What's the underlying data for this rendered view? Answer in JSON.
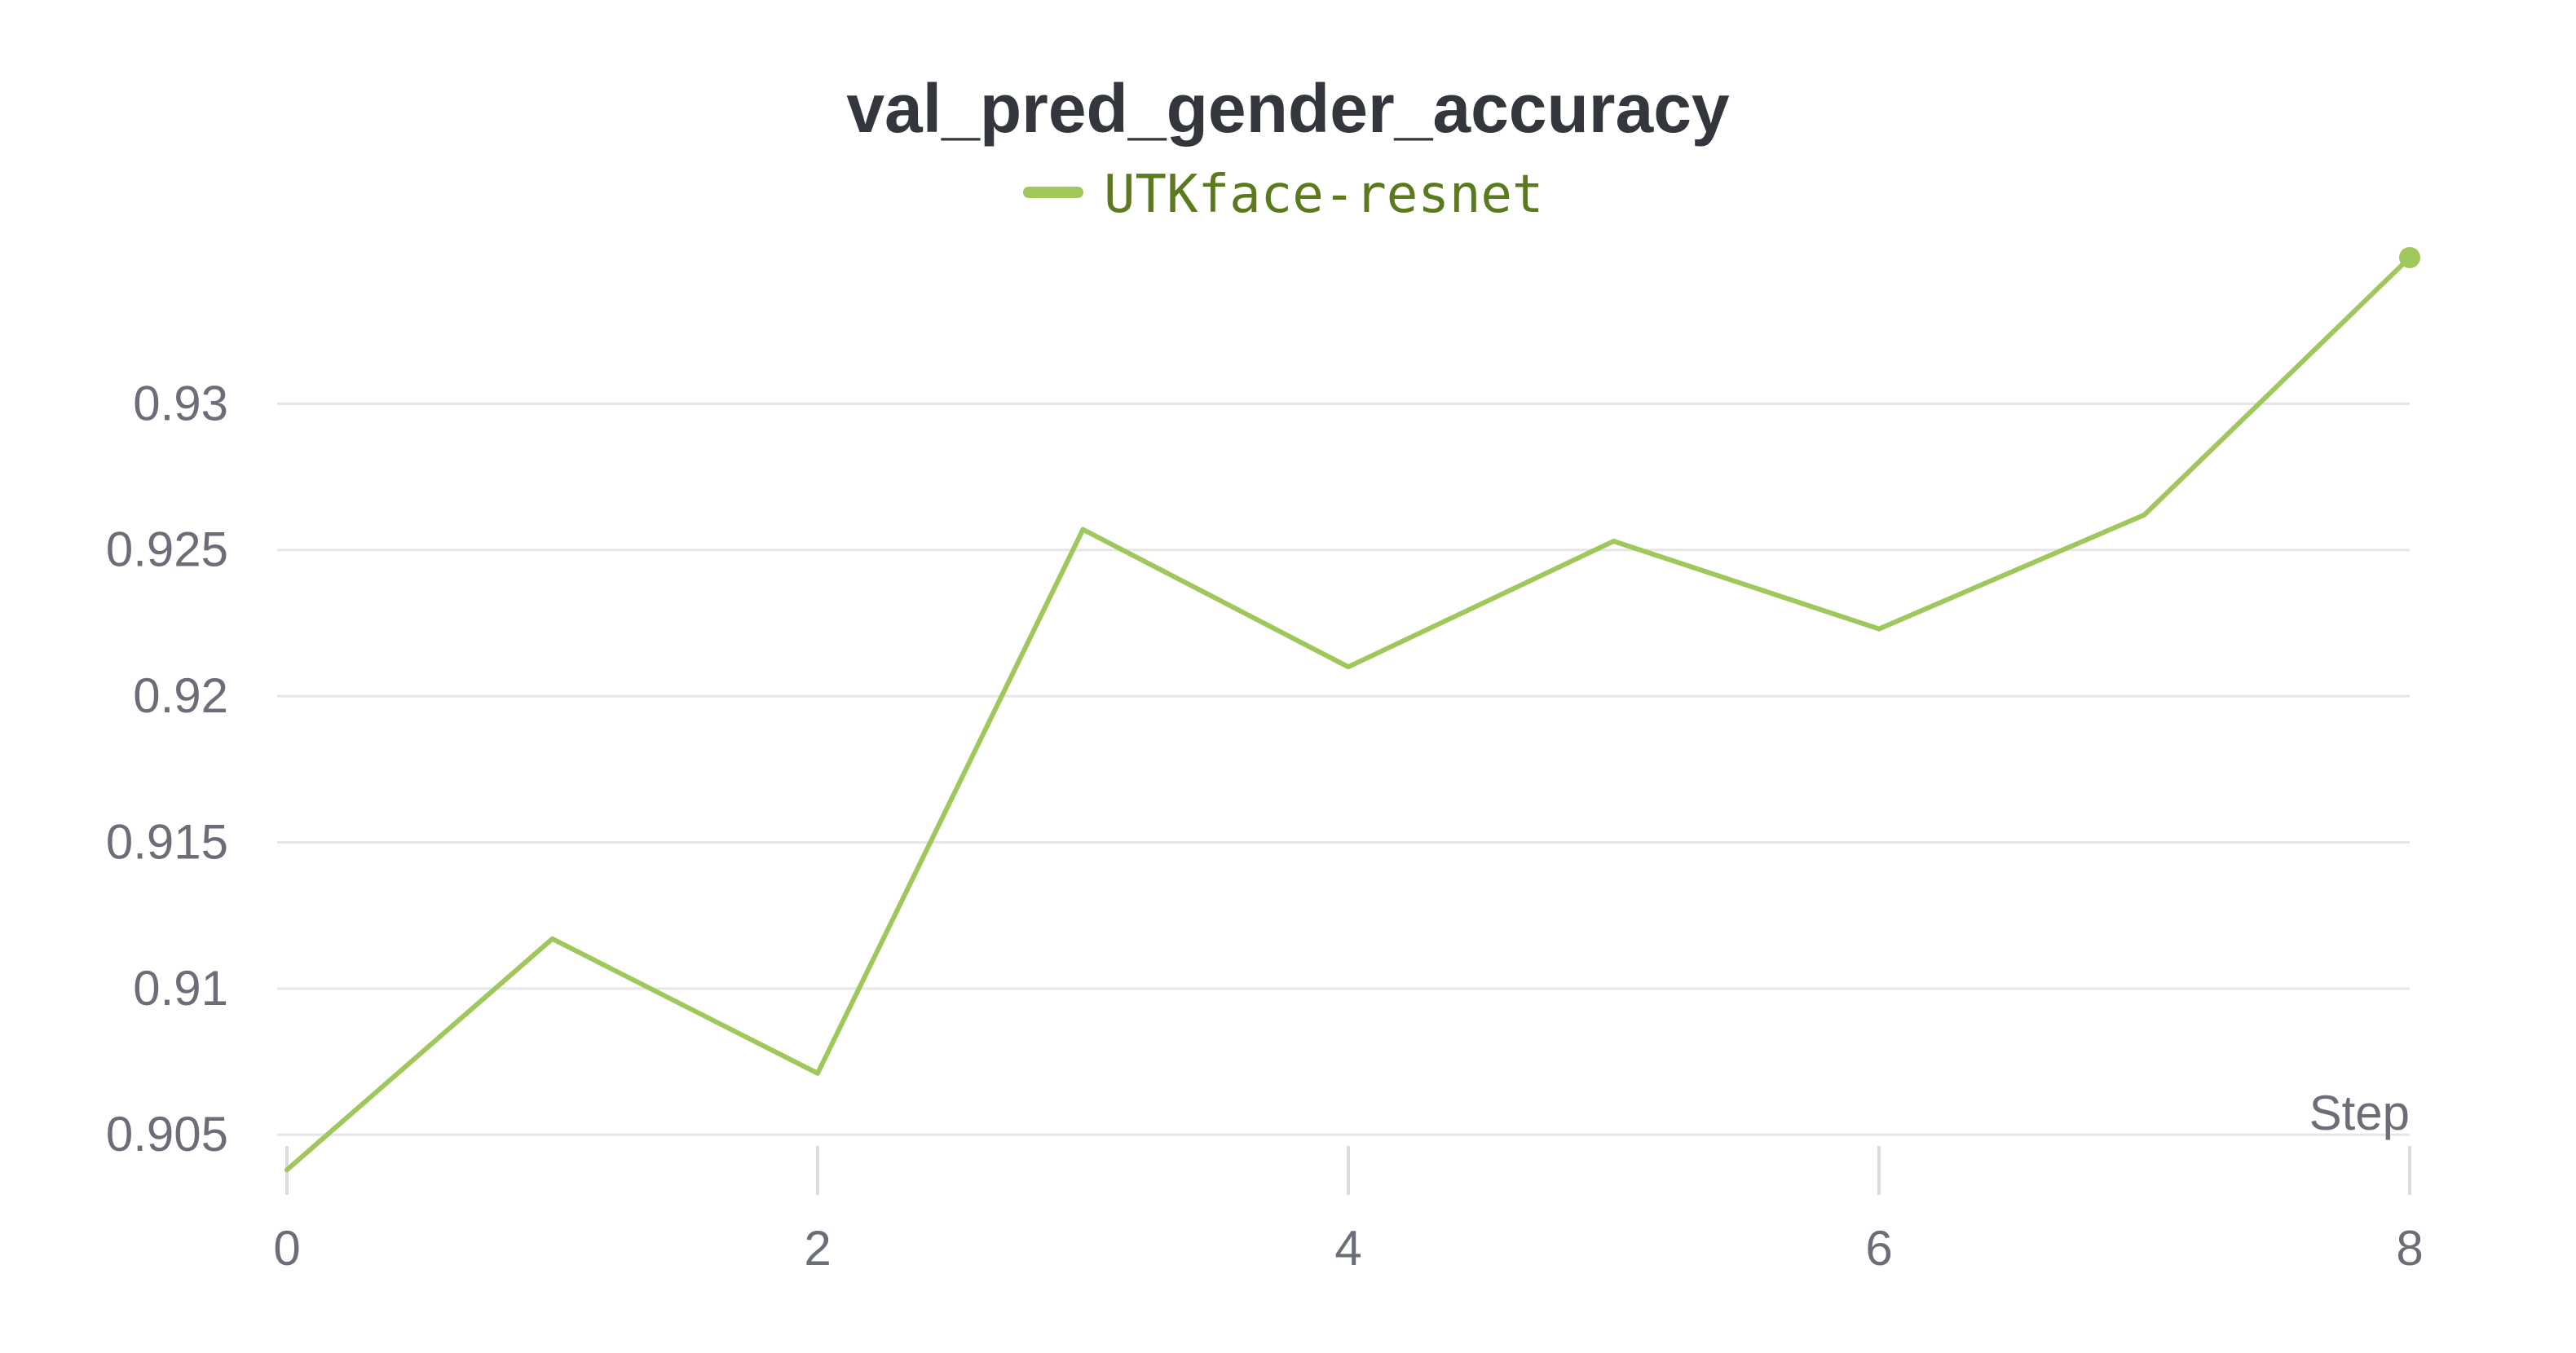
{
  "chart_data": {
    "type": "line",
    "title": "val_pred_gender_accuracy",
    "xlabel": "Step",
    "ylabel": "",
    "x": [
      0,
      1,
      2,
      3,
      4,
      5,
      6,
      7,
      8
    ],
    "series": [
      {
        "name": "UTKface-resnet",
        "color": "#a0c75c",
        "values": [
          0.9038,
          0.9117,
          0.9071,
          0.9257,
          0.921,
          0.9253,
          0.9223,
          0.9262,
          0.935
        ]
      }
    ],
    "xlim": [
      0,
      8
    ],
    "ylim": [
      0.9035,
      0.935
    ],
    "x_ticks": [
      0,
      2,
      4,
      6,
      8
    ],
    "y_ticks": [
      0.905,
      0.91,
      0.915,
      0.92,
      0.925,
      0.93
    ],
    "y_tick_labels": [
      "0.905",
      "0.91",
      "0.915",
      "0.92",
      "0.925",
      "0.93"
    ],
    "grid": true,
    "legend_position": "top-center",
    "show_last_point_marker": true
  }
}
